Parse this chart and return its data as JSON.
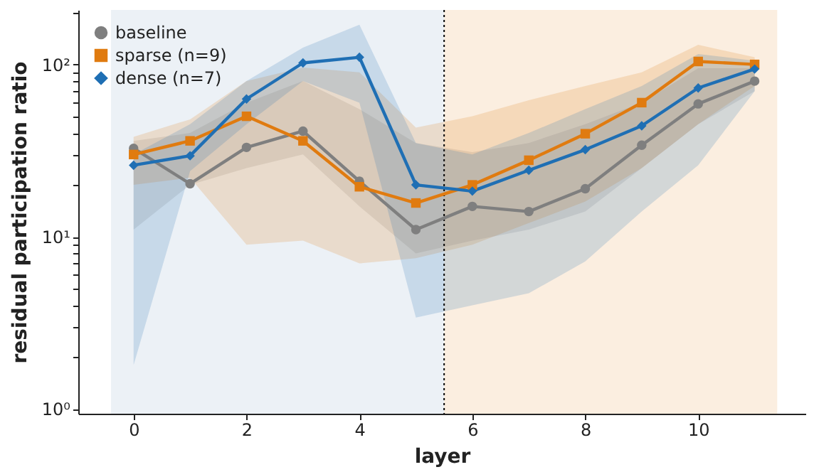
{
  "chart_data": {
    "type": "line",
    "xlabel": "layer",
    "ylabel": "residual participation ratio",
    "x": [
      0,
      1,
      2,
      3,
      4,
      5,
      6,
      7,
      8,
      9,
      10,
      11
    ],
    "series": [
      {
        "name": "baseline",
        "color": "#7f7f7f",
        "marker": "circle",
        "values": [
          32.6,
          20.3,
          33,
          41,
          21,
          11,
          15,
          14,
          19,
          34,
          59,
          80
        ],
        "lower": [
          11,
          20,
          25,
          30,
          15,
          8,
          9.5,
          11,
          14,
          25,
          45,
          70
        ],
        "upper": [
          36,
          40,
          60,
          80,
          55,
          35,
          31,
          35,
          45,
          60,
          95,
          95
        ]
      },
      {
        "name": "sparse (n=9)",
        "color": "#e07b10",
        "marker": "square",
        "values": [
          30,
          36,
          50,
          36,
          19.5,
          15.7,
          20,
          27.8,
          39.6,
          60,
          104,
          100
        ],
        "lower": [
          20,
          22,
          9,
          9.5,
          7,
          7.5,
          9,
          12,
          16,
          25,
          45,
          75
        ],
        "upper": [
          38,
          48,
          80,
          96,
          90,
          43,
          50,
          62,
          75,
          90,
          130,
          110
        ]
      },
      {
        "name": "dense (n=7)",
        "color": "#1f6fb4",
        "marker": "diamond",
        "values": [
          26,
          29.5,
          63,
          102,
          110,
          20,
          18.4,
          24.3,
          32,
          44,
          73,
          94
        ],
        "lower": [
          1.8,
          24,
          45,
          80,
          60,
          3.4,
          4,
          4.7,
          7.2,
          14,
          26,
          70
        ],
        "upper": [
          30,
          45,
          80,
          125,
          170,
          35,
          30,
          40,
          55,
          75,
          115,
          105
        ]
      }
    ],
    "xlim": [
      -0.98,
      11.9
    ],
    "xticks": [
      0,
      2,
      4,
      6,
      8,
      10
    ],
    "ylim": [
      0.94,
      207
    ],
    "log": true,
    "yticks": [
      {
        "value": 1,
        "label": "10⁰"
      },
      {
        "value": 2,
        "label": null
      },
      {
        "value": 3,
        "label": null
      },
      {
        "value": 4,
        "label": null
      },
      {
        "value": 5,
        "label": null
      },
      {
        "value": 6,
        "label": null
      },
      {
        "value": 7,
        "label": null
      },
      {
        "value": 8,
        "label": null
      },
      {
        "value": 9,
        "label": null
      },
      {
        "value": 10,
        "label": "10¹"
      },
      {
        "value": 20,
        "label": null
      },
      {
        "value": 30,
        "label": null
      },
      {
        "value": 40,
        "label": null
      },
      {
        "value": 50,
        "label": null
      },
      {
        "value": 60,
        "label": null
      },
      {
        "value": 70,
        "label": null
      },
      {
        "value": 80,
        "label": null
      },
      {
        "value": 90,
        "label": null
      },
      {
        "value": 100,
        "label": "10²"
      },
      {
        "value": 200,
        "label": null
      }
    ],
    "bands": [
      {
        "axis": "x",
        "from": -0.4,
        "to": 5.5,
        "color": "#ecf1f6"
      },
      {
        "axis": "x",
        "from": 5.5,
        "to": 11.4,
        "color": "#fbeee0"
      }
    ],
    "ref_lines": [
      {
        "axis": "x",
        "value": 5.5,
        "color": "#000000",
        "line_style": "dotted"
      }
    ],
    "grid": false,
    "legend": "top left"
  }
}
